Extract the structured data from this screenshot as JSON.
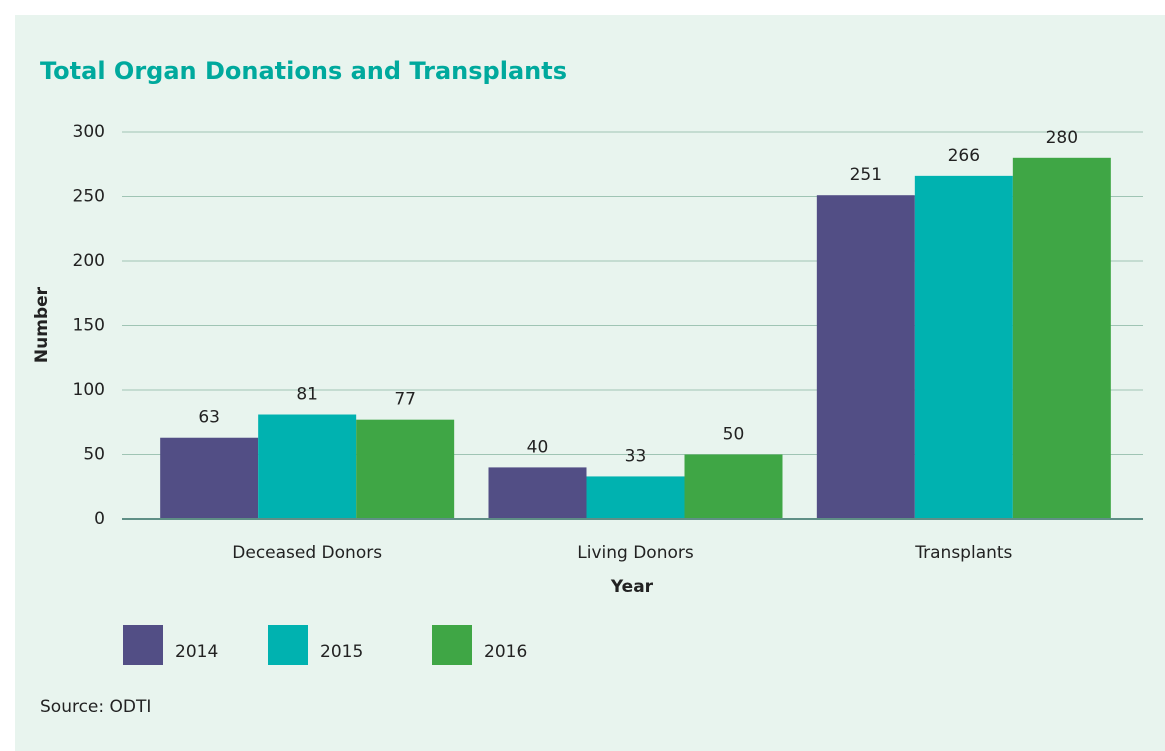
{
  "chart_data": {
    "type": "bar",
    "title": "Total Organ Donations and Transplants",
    "x_label": "Year",
    "y_label": "Number",
    "categories": [
      "Deceased Donors",
      "Living Donors",
      "Transplants"
    ],
    "series": [
      {
        "name": "2014",
        "color": "#524e85",
        "values": [
          63,
          40,
          251
        ]
      },
      {
        "name": "2015",
        "color": "#00b2b0",
        "values": [
          81,
          33,
          266
        ]
      },
      {
        "name": "2016",
        "color": "#3fa645",
        "values": [
          77,
          50,
          280
        ]
      }
    ],
    "ylim": [
      0,
      300
    ],
    "yticks": [
      0,
      50,
      100,
      150,
      200,
      250,
      300
    ],
    "grid": true,
    "legend": "bottom",
    "source": "Source: ODTI"
  }
}
